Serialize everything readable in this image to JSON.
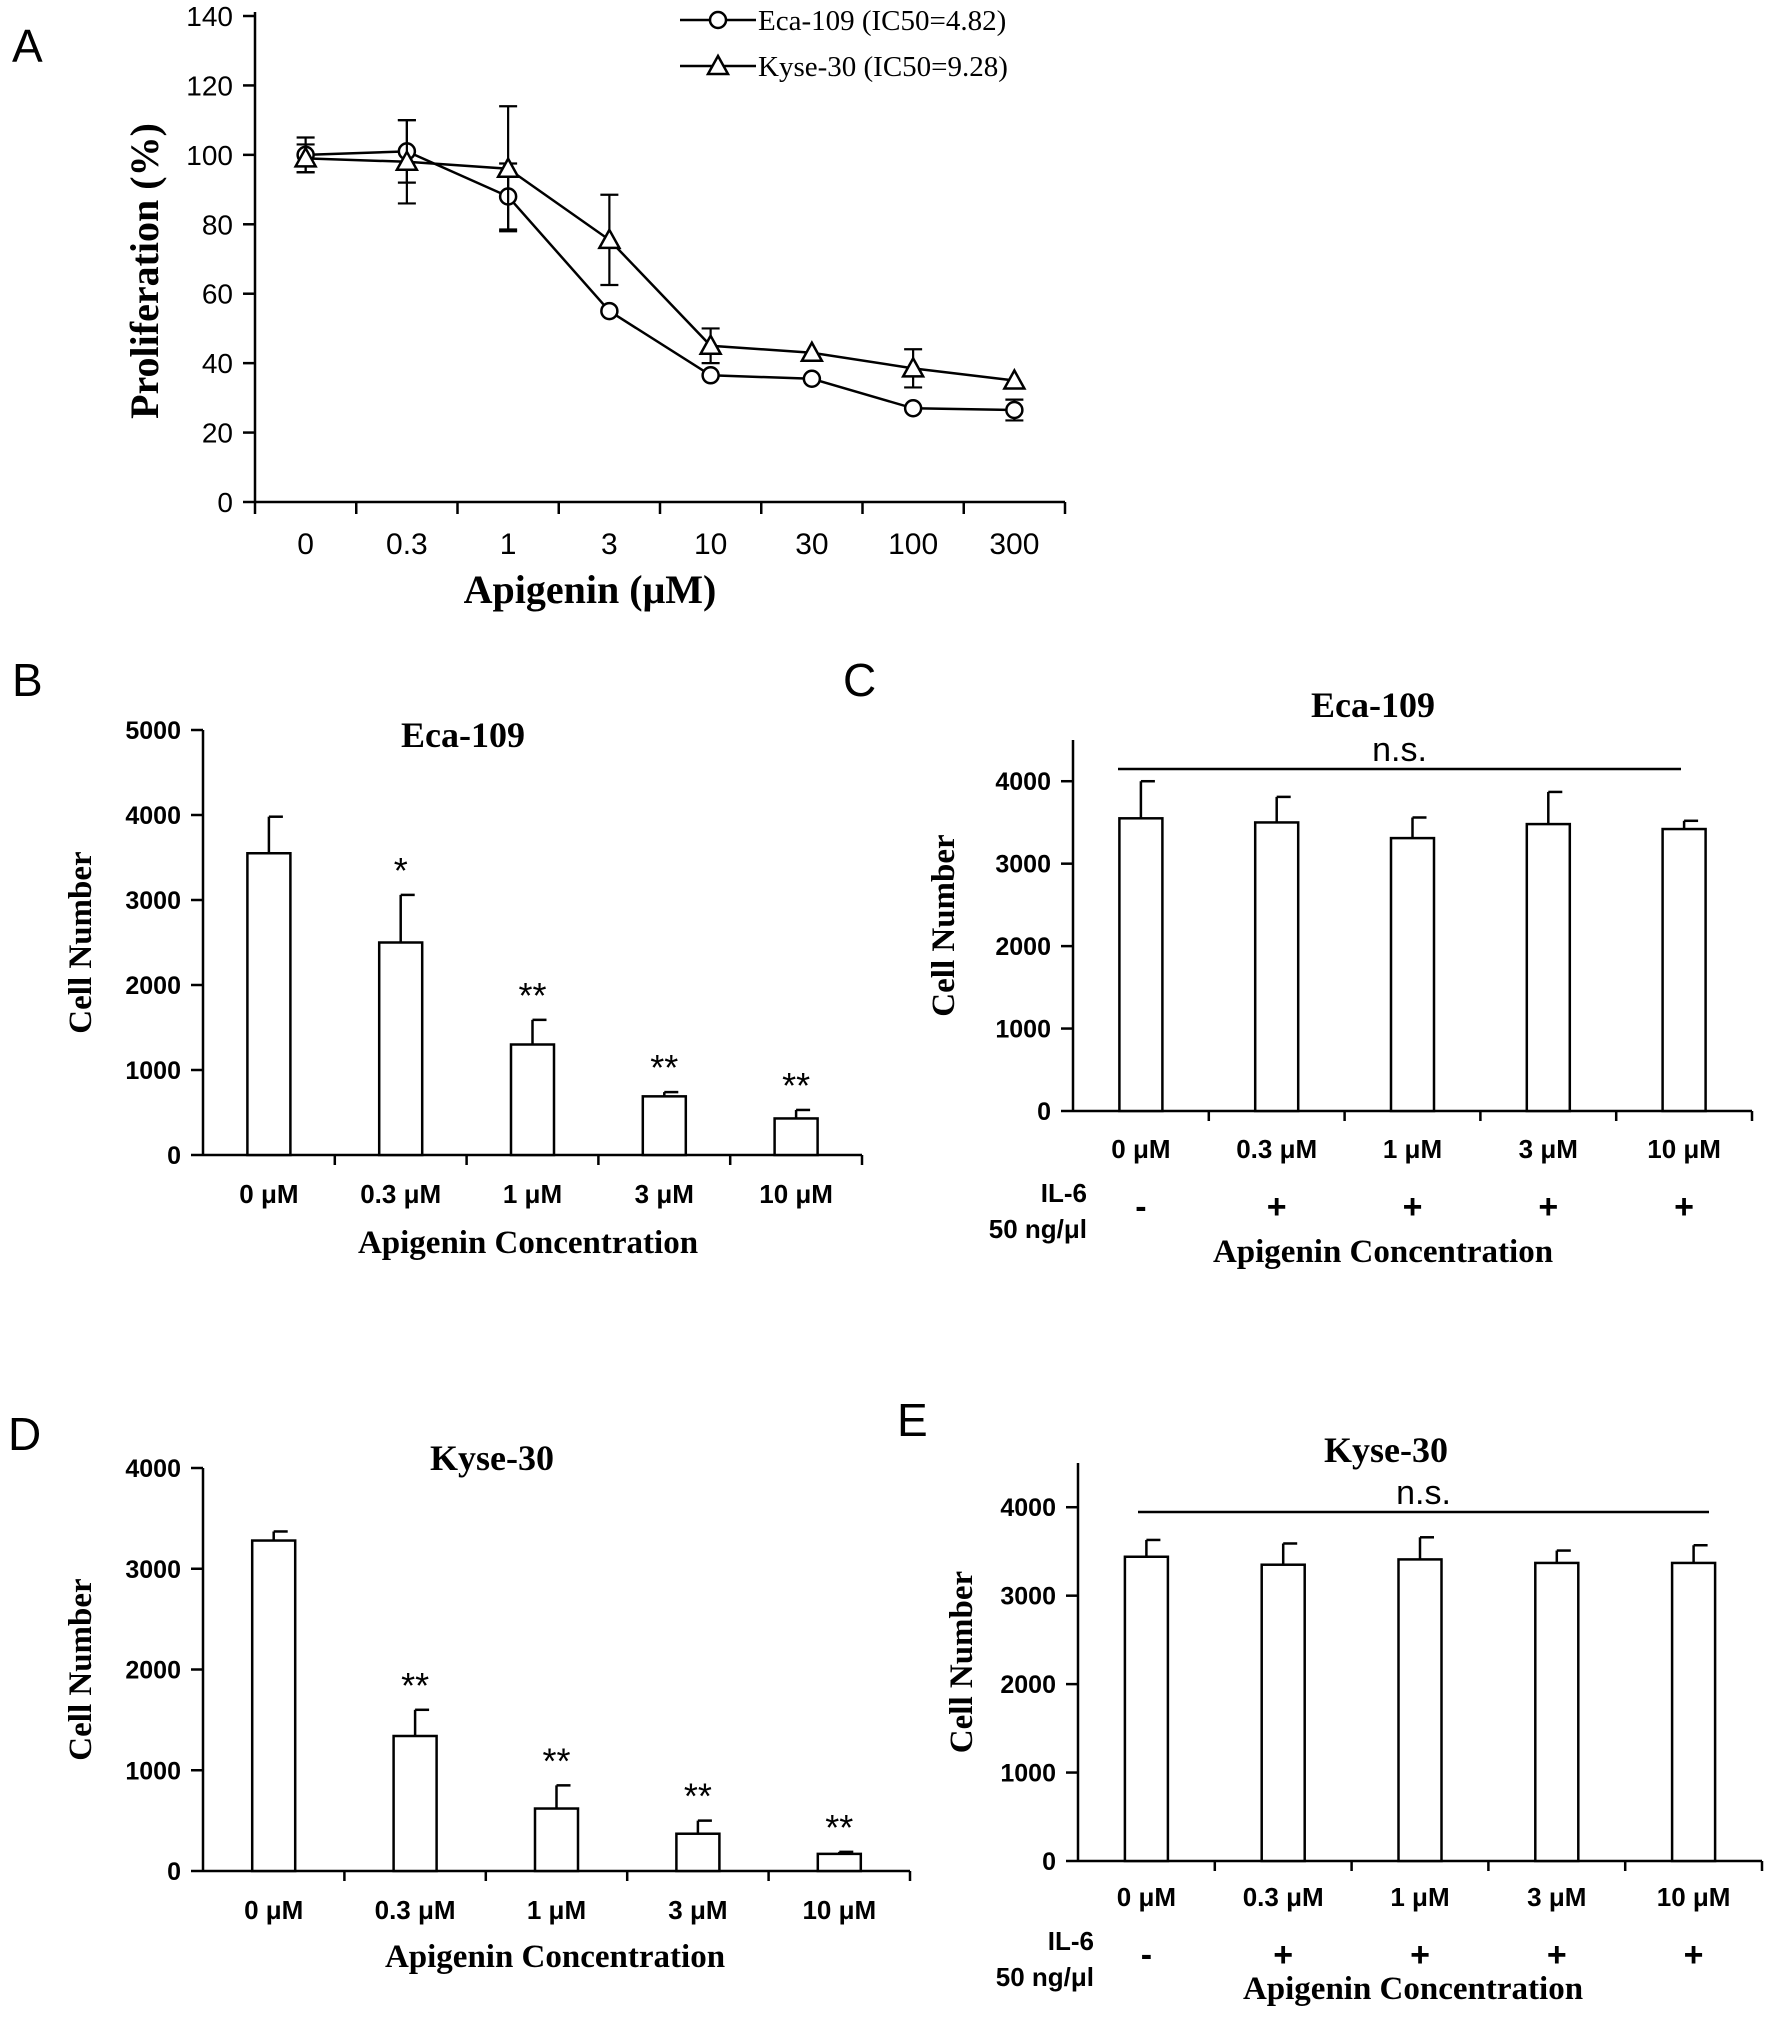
{
  "chart_data": [
    {
      "panel": "A",
      "type": "line",
      "title": "",
      "xlabel": "Apigenin (μM)",
      "ylabel": "Proliferation (%)",
      "categories": [
        "0",
        "0.3",
        "1",
        "3",
        "10",
        "30",
        "100",
        "300"
      ],
      "yticks": [
        "0",
        "20",
        "40",
        "60",
        "80",
        "100",
        "120",
        "140"
      ],
      "ylim": [
        0,
        140
      ],
      "series": [
        {
          "name": "Eca-109 (IC50=4.82)",
          "marker": "circle",
          "values": [
            100,
            101,
            88,
            55,
            36.5,
            35.5,
            27,
            26.5
          ],
          "errors": [
            5,
            9,
            9.5,
            0,
            0,
            0,
            0,
            3
          ]
        },
        {
          "name": "Kyse-30 (IC50=9.28)",
          "marker": "triangle",
          "values": [
            99,
            98,
            96,
            75.5,
            45,
            43,
            38.5,
            35
          ],
          "errors": [
            4,
            12,
            18,
            13,
            5,
            0,
            5.5,
            0
          ]
        }
      ]
    },
    {
      "panel": "B",
      "type": "bar",
      "title": "Eca-109",
      "xlabel": "Apigenin Concentration",
      "ylabel": "Cell Number",
      "categories": [
        "0 μM",
        "0.3 μM",
        "1 μM",
        "3 μM",
        "10 μM"
      ],
      "values": [
        3550,
        2500,
        1300,
        690,
        430
      ],
      "errors": [
        430,
        560,
        290,
        50,
        100
      ],
      "significance": [
        "",
        "*",
        "**",
        "**",
        "**"
      ],
      "yticks": [
        "0",
        "1000",
        "2000",
        "3000",
        "4000",
        "5000"
      ],
      "ylim": [
        0,
        5000
      ]
    },
    {
      "panel": "C",
      "type": "bar",
      "title": "Eca-109",
      "xlabel": "Apigenin Concentration",
      "ylabel": "Cell Number",
      "categories": [
        "0 μM",
        "0.3 μM",
        "1 μM",
        "3 μM",
        "10 μM"
      ],
      "values": [
        3550,
        3500,
        3310,
        3480,
        3420
      ],
      "errors": [
        450,
        310,
        250,
        390,
        100
      ],
      "treatment_label": [
        "IL-6",
        "50 ng/μl"
      ],
      "treatment": [
        "-",
        "+",
        "+",
        "+",
        "+"
      ],
      "annotation": "n.s.",
      "yticks": [
        "0",
        "1000",
        "2000",
        "3000",
        "4000"
      ],
      "ylim": [
        0,
        4500
      ]
    },
    {
      "panel": "D",
      "type": "bar",
      "title": "Kyse-30",
      "xlabel": "Apigenin Concentration",
      "ylabel": "Cell Number",
      "categories": [
        "0 μM",
        "0.3 μM",
        "1 μM",
        "3 μM",
        "10 μM"
      ],
      "values": [
        3280,
        1340,
        620,
        370,
        170
      ],
      "errors": [
        90,
        260,
        230,
        130,
        20
      ],
      "significance": [
        "",
        "**",
        "**",
        "**",
        "**"
      ],
      "yticks": [
        "0",
        "1000",
        "2000",
        "3000",
        "4000"
      ],
      "ylim": [
        0,
        4000
      ]
    },
    {
      "panel": "E",
      "type": "bar",
      "title": "Kyse-30",
      "xlabel": "Apigenin Concentration",
      "ylabel": "Cell Number",
      "categories": [
        "0 μM",
        "0.3 μM",
        "1 μM",
        "3 μM",
        "10 μM"
      ],
      "values": [
        3440,
        3350,
        3410,
        3370,
        3370
      ],
      "errors": [
        190,
        240,
        250,
        140,
        200
      ],
      "treatment_label": [
        "IL-6",
        "50 ng/μl"
      ],
      "treatment": [
        "-",
        "+",
        "+",
        "+",
        "+"
      ],
      "annotation": "n.s.",
      "yticks": [
        "0",
        "1000",
        "2000",
        "3000",
        "4000"
      ],
      "ylim": [
        0,
        4500
      ]
    }
  ]
}
